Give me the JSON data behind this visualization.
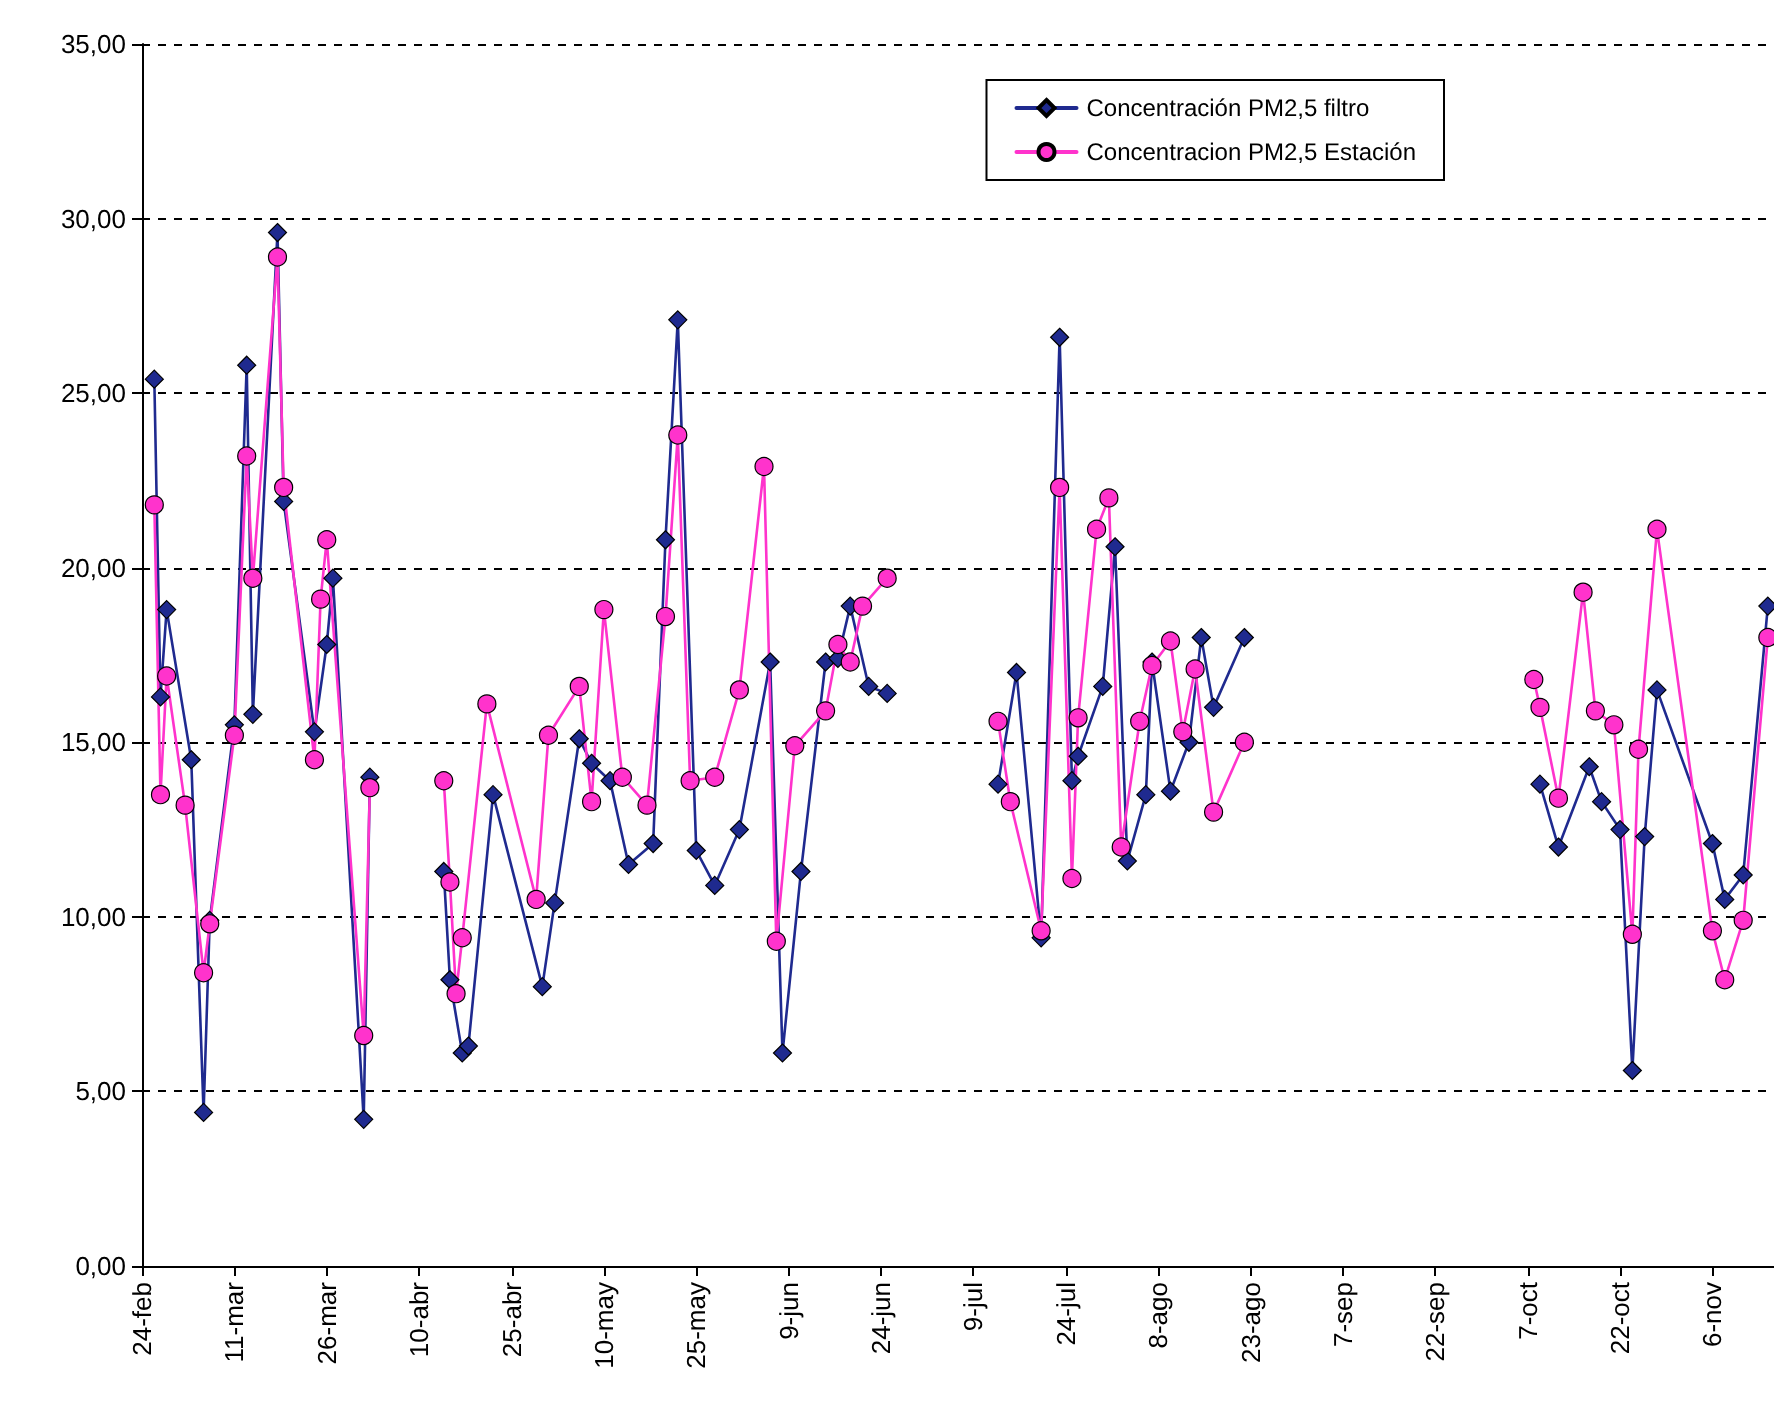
{
  "chart_data": {
    "type": "line",
    "ylim": [
      0,
      35
    ],
    "xlim": [
      "--02-24",
      "--11-16"
    ],
    "yticks": [
      {
        "value": 0,
        "label": "0,00"
      },
      {
        "value": 5,
        "label": "5,00"
      },
      {
        "value": 10,
        "label": "10,00"
      },
      {
        "value": 15,
        "label": "15,00"
      },
      {
        "value": 20,
        "label": "20,00"
      },
      {
        "value": 25,
        "label": "25,00"
      },
      {
        "value": 30,
        "label": "30,00"
      },
      {
        "value": 35,
        "label": "35,00"
      }
    ],
    "xticks": [
      {
        "value": "--02-24",
        "label": "24-feb"
      },
      {
        "value": "--03-11",
        "label": "11-mar"
      },
      {
        "value": "--03-26",
        "label": "26-mar"
      },
      {
        "value": "--04-10",
        "label": "10-abr"
      },
      {
        "value": "--04-25",
        "label": "25-abr"
      },
      {
        "value": "--05-10",
        "label": "10-may"
      },
      {
        "value": "--05-25",
        "label": "25-may"
      },
      {
        "value": "--06-09",
        "label": "9-jun"
      },
      {
        "value": "--06-24",
        "label": "24-jun"
      },
      {
        "value": "--07-09",
        "label": "9-jul"
      },
      {
        "value": "--07-24",
        "label": "24-jul"
      },
      {
        "value": "--08-08",
        "label": "8-ago"
      },
      {
        "value": "--08-23",
        "label": "23-ago"
      },
      {
        "value": "--09-07",
        "label": "7-sep"
      },
      {
        "value": "--09-22",
        "label": "22-sep"
      },
      {
        "value": "--10-07",
        "label": "7-oct"
      },
      {
        "value": "--10-22",
        "label": "22-oct"
      },
      {
        "value": "--11-06",
        "label": "6-nov"
      }
    ],
    "grid": "y",
    "legend": "top right",
    "line_style": "solid",
    "series": [
      {
        "name": "Concentración PM2,5 filtro",
        "color": "#1f2a8f",
        "marker": "diamond",
        "x": [
          "--02-26",
          "--02-27",
          "--02-28",
          "--03-04",
          "--03-06",
          "--03-07",
          "--03-11",
          "--03-13",
          "--03-14",
          "--03-18",
          "--03-19",
          "--03-24",
          "--03-26",
          "--03-27",
          "--04-01",
          "--04-02",
          "--04-08",
          "--04-14",
          "--04-15",
          "--04-17",
          "--04-18",
          "--04-22",
          "--04-30",
          "--05-02",
          "--05-06",
          "--05-08",
          "--05-11",
          "--05-14",
          "--05-18",
          "--05-20",
          "--05-22",
          "--05-25",
          "--05-28",
          "--06-01",
          "--06-06",
          "--06-08",
          "--06-11",
          "--06-15",
          "--06-17",
          "--06-19",
          "--06-22",
          "--06-25",
          "--07-04",
          "--07-13",
          "--07-16",
          "--07-20",
          "--07-23",
          "--07-25",
          "--07-26",
          "--07-30",
          "--08-01",
          "--08-03",
          "--08-06",
          "--08-07",
          "--08-10",
          "--08-13",
          "--08-15",
          "--08-17",
          "--08-22",
          "--09-12",
          "--10-09",
          "--10-12",
          "--10-17",
          "--10-19",
          "--10-22",
          "--10-24",
          "--10-26",
          "--10-28",
          "--11-06",
          "--11-08",
          "--11-11",
          "--11-15"
        ],
        "values": [
          25.4,
          16.3,
          18.8,
          14.5,
          4.4,
          9.9,
          15.5,
          25.8,
          15.8,
          29.6,
          21.9,
          15.3,
          17.8,
          19.7,
          4.2,
          14.0,
          null,
          11.3,
          8.2,
          6.1,
          6.3,
          13.5,
          8.0,
          10.4,
          15.1,
          14.4,
          13.9,
          11.5,
          12.1,
          20.8,
          27.1,
          11.9,
          10.9,
          12.5,
          17.3,
          6.1,
          11.3,
          17.3,
          17.4,
          18.9,
          16.6,
          16.4,
          null,
          13.8,
          17.0,
          9.4,
          26.6,
          13.9,
          14.6,
          16.6,
          20.6,
          11.6,
          13.5,
          17.3,
          13.6,
          15.0,
          18.0,
          16.0,
          18.0,
          null,
          13.8,
          12.0,
          14.3,
          13.3,
          12.5,
          5.6,
          12.3,
          16.5,
          12.1,
          10.5,
          11.2,
          18.9
        ]
      },
      {
        "name": "Concentracion PM2,5 Estación",
        "color": "#ff33cc",
        "marker": "circle",
        "x": [
          "--02-26",
          "--02-27",
          "--02-28",
          "--03-03",
          "--03-06",
          "--03-07",
          "--03-11",
          "--03-13",
          "--03-14",
          "--03-18",
          "--03-19",
          "--03-24",
          "--03-25",
          "--03-26",
          "--04-01",
          "--04-02",
          "--04-08",
          "--04-14",
          "--04-15",
          "--04-16",
          "--04-17",
          "--04-21",
          "--04-29",
          "--05-01",
          "--05-06",
          "--05-08",
          "--05-10",
          "--05-13",
          "--05-17",
          "--05-20",
          "--05-22",
          "--05-24",
          "--05-28",
          "--06-01",
          "--06-05",
          "--06-07",
          "--06-10",
          "--06-15",
          "--06-17",
          "--06-19",
          "--06-21",
          "--06-25",
          "--07-04",
          "--07-13",
          "--07-15",
          "--07-20",
          "--07-23",
          "--07-25",
          "--07-26",
          "--07-29",
          "--07-31",
          "--08-02",
          "--08-05",
          "--08-07",
          "--08-10",
          "--08-12",
          "--08-14",
          "--08-17",
          "--08-22",
          "--09-12",
          "--10-08",
          "--10-09",
          "--10-12",
          "--10-16",
          "--10-18",
          "--10-21",
          "--10-24",
          "--10-25",
          "--10-28",
          "--11-06",
          "--11-08",
          "--11-11",
          "--11-15"
        ],
        "values": [
          21.8,
          13.5,
          16.9,
          13.2,
          8.4,
          9.8,
          15.2,
          23.2,
          19.7,
          28.9,
          22.3,
          14.5,
          19.1,
          20.8,
          6.6,
          13.7,
          null,
          13.9,
          11.0,
          7.8,
          9.4,
          16.1,
          10.5,
          15.2,
          16.6,
          13.3,
          18.8,
          14.0,
          13.2,
          18.6,
          23.8,
          13.9,
          14.0,
          16.5,
          22.9,
          9.3,
          14.9,
          15.9,
          17.8,
          17.3,
          18.9,
          19.7,
          null,
          15.6,
          13.3,
          9.6,
          22.3,
          11.1,
          15.7,
          21.1,
          22.0,
          12.0,
          15.6,
          17.2,
          17.9,
          15.3,
          17.1,
          13.0,
          15.0,
          null,
          16.8,
          16.0,
          13.4,
          19.3,
          15.9,
          15.5,
          9.5,
          14.8,
          21.1,
          9.6,
          8.2,
          9.9,
          18.0
        ]
      }
    ]
  }
}
